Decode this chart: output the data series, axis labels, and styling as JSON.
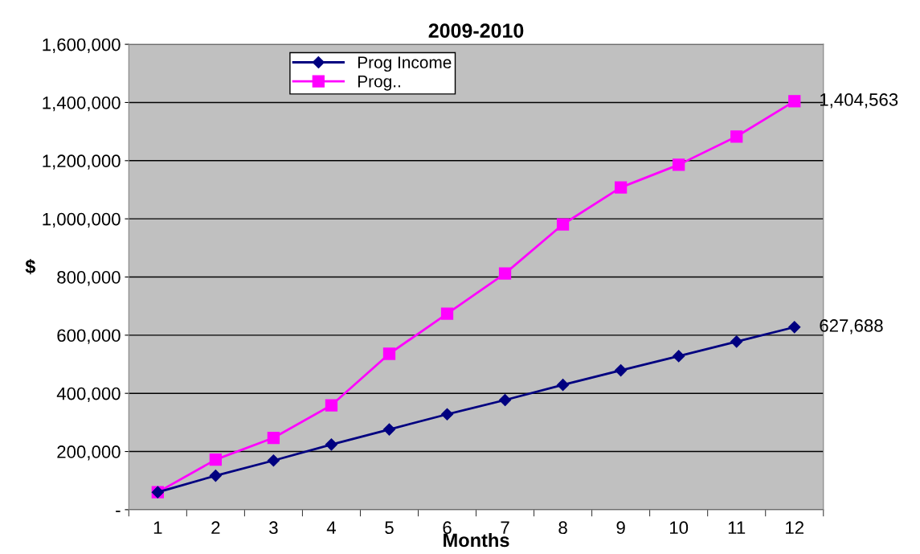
{
  "chart_data": {
    "type": "line",
    "title": "2009-2010",
    "xlabel": "Months",
    "ylabel": "$",
    "categories": [
      "1",
      "2",
      "3",
      "4",
      "5",
      "6",
      "7",
      "8",
      "9",
      "10",
      "11",
      "12"
    ],
    "series": [
      {
        "name": "Prog Income",
        "color": "#000080",
        "marker": "diamond",
        "values": [
          60000,
          117000,
          169000,
          224000,
          276000,
          328000,
          377000,
          429000,
          479000,
          528000,
          578000,
          627688
        ],
        "value_labels": [
          null,
          null,
          null,
          null,
          null,
          null,
          null,
          null,
          null,
          null,
          null,
          "627,688"
        ]
      },
      {
        "name": "Prog..",
        "color": "#ff00ff",
        "marker": "square",
        "values": [
          60000,
          172000,
          247000,
          359000,
          536000,
          674000,
          812000,
          981000,
          1108000,
          1186000,
          1283000,
          1404563
        ],
        "value_labels": [
          null,
          null,
          null,
          null,
          null,
          null,
          null,
          null,
          null,
          null,
          null,
          "1,404,563"
        ]
      }
    ],
    "ylim": [
      0,
      1600000
    ],
    "yticks": [
      {
        "value": 0,
        "label": "-"
      },
      {
        "value": 200000,
        "label": "200,000"
      },
      {
        "value": 400000,
        "label": "400,000"
      },
      {
        "value": 600000,
        "label": "600,000"
      },
      {
        "value": 800000,
        "label": "800,000"
      },
      {
        "value": 1000000,
        "label": "1,000,000"
      },
      {
        "value": 1200000,
        "label": "1,200,000"
      },
      {
        "value": 1400000,
        "label": "1,400,000"
      },
      {
        "value": 1600000,
        "label": "1,600,000"
      }
    ],
    "grid": "y",
    "legend": "top left",
    "line_style": "solid"
  }
}
